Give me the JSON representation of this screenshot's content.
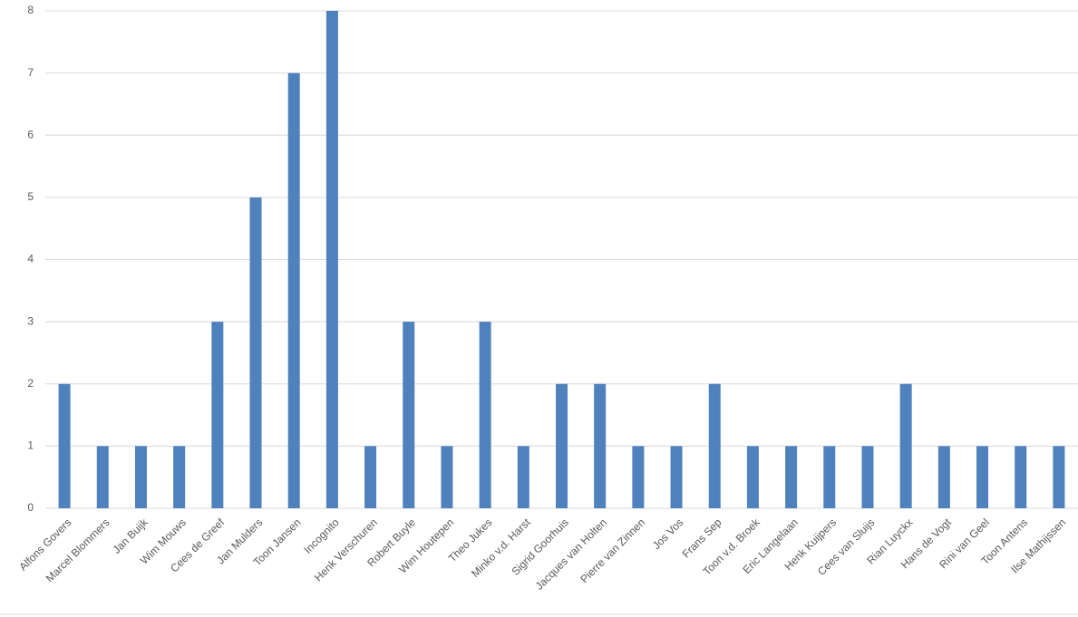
{
  "chart_data": {
    "type": "bar",
    "categories": [
      "Alfons Govers",
      "Marcel Blommers",
      "Jan Buijk",
      "Wim Mouws",
      "Cees de Greef",
      "Jan Mulders",
      "Toon Jansen",
      "Incognito",
      "Henk Verschuren",
      "Robert Buyle",
      "Wim Houtepen",
      "Theo Jukes",
      "Minko v.d. Harst",
      "Sigrid Goorhuis",
      "Jacques van Holten",
      "Pierre van Zinnen",
      "Jos Vos",
      "Frans Sep",
      "Toon v.d. Broek",
      "Eric Langelaan",
      "Henk Kuijpers",
      "Cees van Sluijs",
      "Rian Luyckx",
      "Hans de Vogt",
      "Rini van Geel",
      "Toon Antens",
      "Ilse Mathijssen"
    ],
    "values": [
      2,
      1,
      1,
      1,
      3,
      5,
      7,
      8,
      1,
      3,
      1,
      3,
      1,
      2,
      2,
      1,
      1,
      2,
      1,
      1,
      1,
      1,
      2,
      1,
      1,
      1,
      1
    ],
    "color": "#4f81bd",
    "ylim": [
      0,
      8
    ],
    "yticks": [
      0,
      1,
      2,
      3,
      4,
      5,
      6,
      7,
      8
    ],
    "grid": true
  }
}
